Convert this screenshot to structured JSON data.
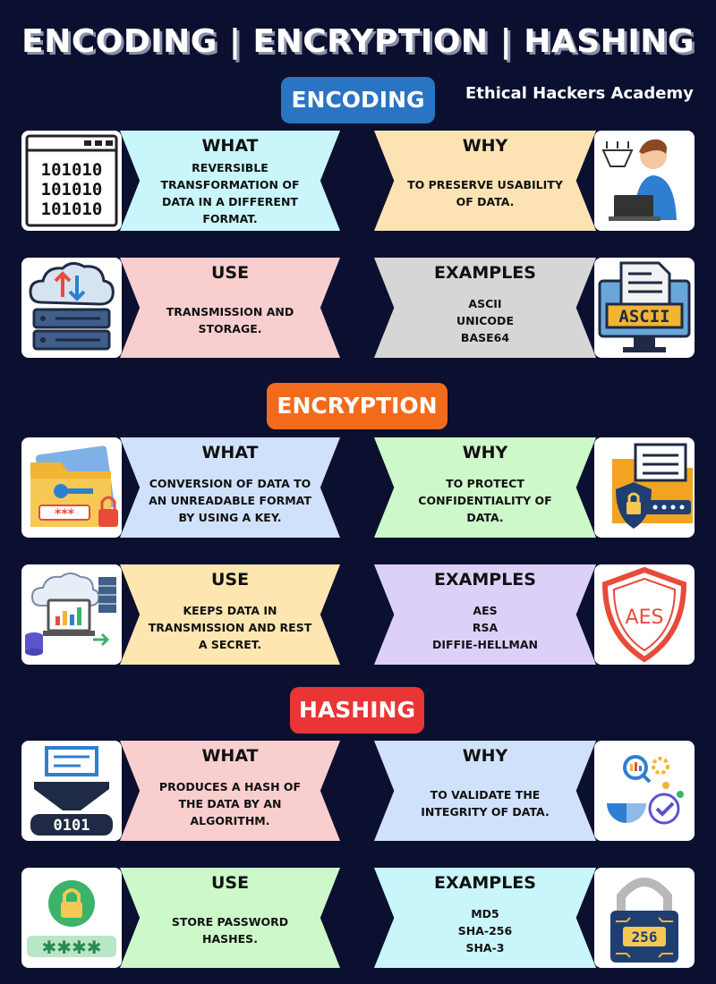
{
  "title": "ENCODING | ENCRYPTION | HASHING",
  "brand": "Ethical Hackers Academy",
  "sections": {
    "encoding": {
      "label": "ENCODING",
      "what": {
        "head": "WHAT",
        "text": "REVERSIBLE TRANSFORMATION OF DATA IN A DIFFERENT FORMAT."
      },
      "why": {
        "head": "WHY",
        "text": "TO PRESERVE USABILITY OF DATA."
      },
      "use": {
        "head": "USE",
        "text": "TRANSMISSION AND STORAGE."
      },
      "examples": {
        "head": "EXAMPLES",
        "text": "ASCII\nUNICODE\nBASE64"
      },
      "binary_text": "101010",
      "ascii_label": "ASCII"
    },
    "encryption": {
      "label": "ENCRYPTION",
      "what": {
        "head": "WHAT",
        "text": "CONVERSION OF DATA TO AN UNREADABLE FORMAT BY USING A KEY."
      },
      "why": {
        "head": "WHY",
        "text": "TO PROTECT CONFIDENTIALITY OF DATA."
      },
      "use": {
        "head": "USE",
        "text": "KEEPS DATA IN TRANSMISSION AND REST A SECRET."
      },
      "examples": {
        "head": "EXAMPLES",
        "text": "AES\nRSA\nDIFFIE-HELLMAN"
      },
      "aes_label": "AES",
      "password_mask": "***"
    },
    "hashing": {
      "label": "HASHING",
      "what": {
        "head": "WHAT",
        "text": "PRODUCES A HASH OF THE DATA BY AN ALGORITHM."
      },
      "why": {
        "head": "WHY",
        "text": "TO VALIDATE THE INTEGRITY OF DATA."
      },
      "use": {
        "head": "USE",
        "text": "STORE PASSWORD HASHES."
      },
      "examples": {
        "head": "EXAMPLES",
        "text": "MD5\nSHA-256\nSHA-3"
      },
      "bits_label": "0101",
      "password_stars": "✱✱✱✱",
      "lock_label": "256"
    }
  },
  "colors": {
    "background": "#0c1030",
    "encoding_pill": "#2a74c4",
    "encryption_pill": "#f26b1d",
    "hashing_pill": "#e93535",
    "cyan": "#c9f6fb",
    "peach": "#fde3b3",
    "pink": "#f9cece",
    "grey": "#d6d6d6",
    "lightblue": "#d0e2fb",
    "lightgreen": "#cdf8c9",
    "cream": "#fde6b0",
    "lavender": "#dcd0f9"
  }
}
